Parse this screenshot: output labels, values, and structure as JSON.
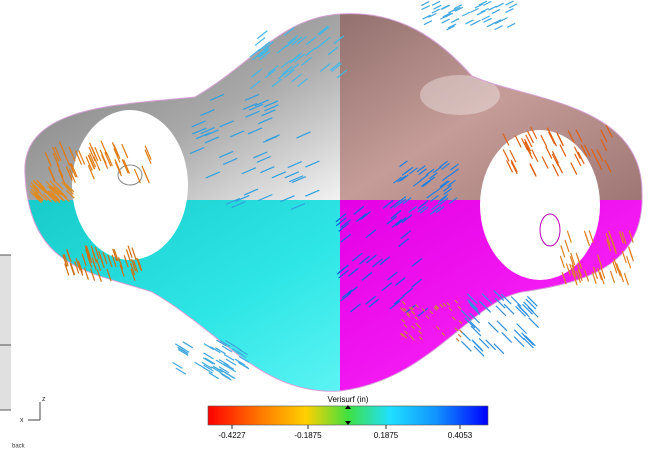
{
  "legend": {
    "title": "Verisurf (in)",
    "ticks": [
      "-0.4227",
      "-0.1875",
      "0.1875",
      "0.4053"
    ]
  },
  "triad": {
    "z": "z",
    "x": "x"
  },
  "view_label": "back"
}
